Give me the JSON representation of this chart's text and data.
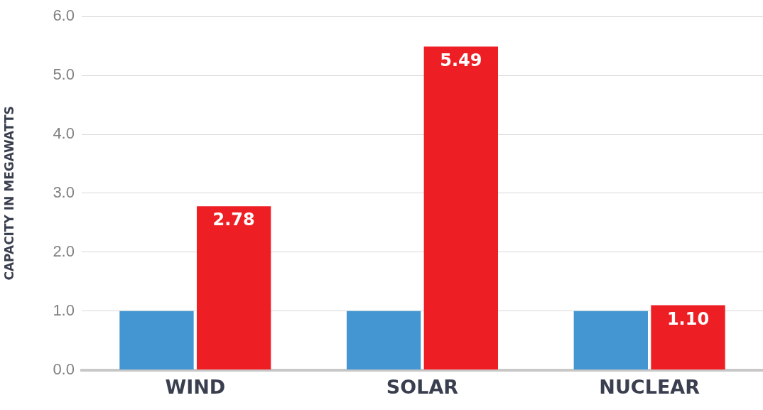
{
  "chart_data": {
    "type": "bar",
    "ylabel": "CAPACITY IN MEGAWATTS",
    "categories": [
      "WIND",
      "SOLAR",
      "NUCLEAR"
    ],
    "series": [
      {
        "color": "#4396d2",
        "values": [
          1.0,
          1.0,
          1.0
        ]
      },
      {
        "color": "#ee1f24",
        "values": [
          2.78,
          5.49,
          1.1
        ],
        "value_labels": [
          "2.78",
          "5.49",
          "1.10"
        ]
      }
    ],
    "ylim": [
      0,
      6
    ],
    "yticks": [
      {
        "value": 0,
        "label": "0.0"
      },
      {
        "value": 1,
        "label": "1.0"
      },
      {
        "value": 2,
        "label": "2.0"
      },
      {
        "value": 3,
        "label": "3.0"
      },
      {
        "value": 4,
        "label": "4.0"
      },
      {
        "value": 5,
        "label": "5.0"
      },
      {
        "value": 6,
        "label": "6.0"
      }
    ],
    "grid": "y",
    "legend": false
  }
}
